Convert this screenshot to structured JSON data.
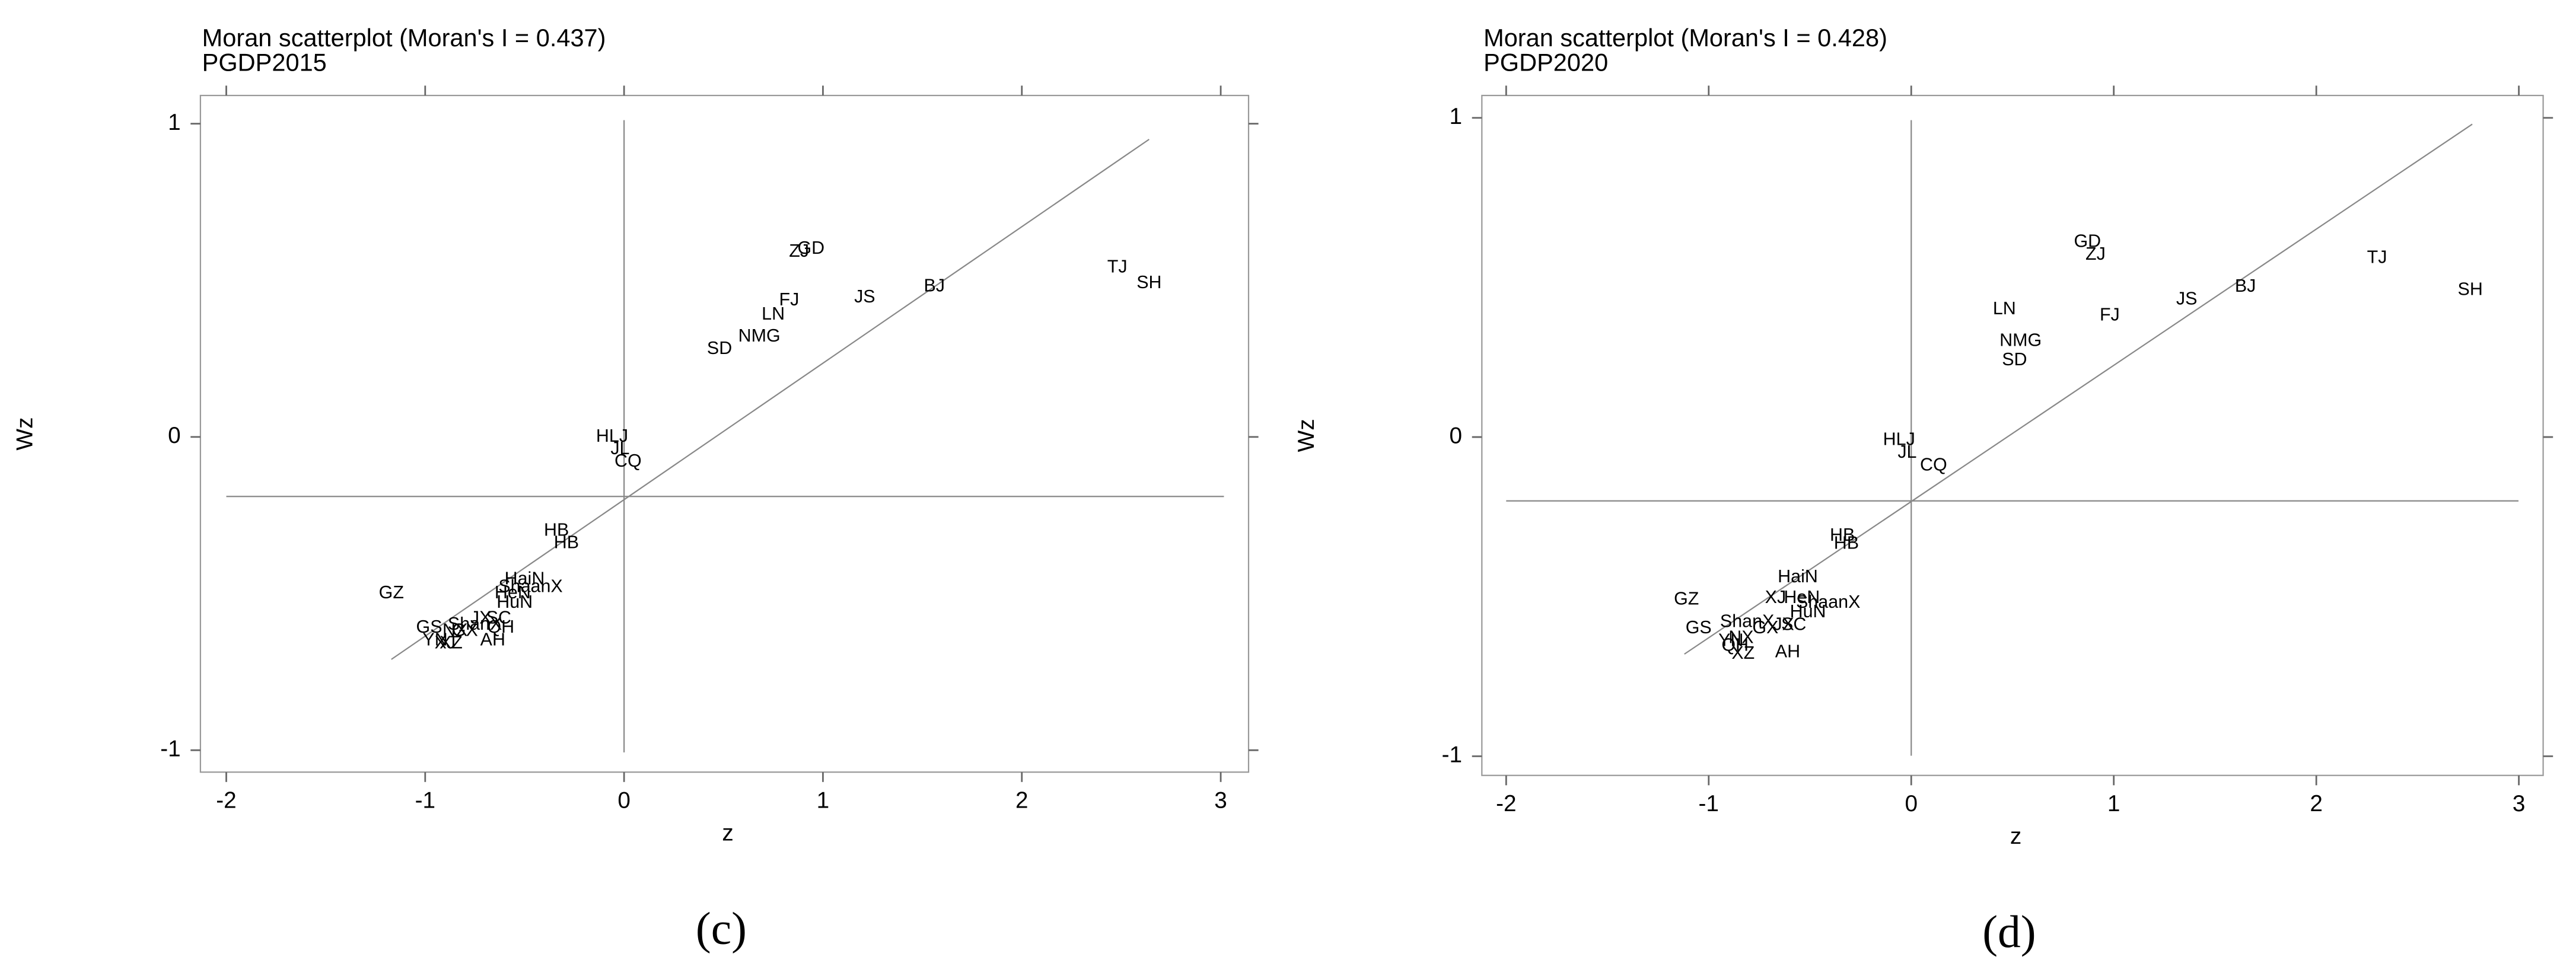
{
  "chart_data": [
    {
      "type": "scatter",
      "title": "Moran scatterplot (Moran's I = 0.437)",
      "subtitle": "PGDP2015",
      "caption": "(c)",
      "xlabel": "z",
      "ylabel": "Wz",
      "xlim": [
        -2.13,
        3.14
      ],
      "ylim": [
        -1.07,
        1.09
      ],
      "xticks": [
        -2,
        -1,
        0,
        1,
        2,
        3
      ],
      "yticks": [
        -1,
        0,
        1
      ],
      "hline": -0.19,
      "vline": 0,
      "fit_line": {
        "x": [
          -1.17,
          2.64
        ],
        "y": [
          -0.71,
          0.95
        ]
      },
      "labels": [
        "BJ",
        "TJ",
        "HB",
        "ShanX",
        "NMG",
        "LN",
        "JL",
        "HLJ",
        "SH",
        "JS",
        "ZJ",
        "AH",
        "FJ",
        "JX",
        "SD",
        "HeN",
        "HB",
        "HuN",
        "GD",
        "GX",
        "HaiN",
        "CQ",
        "SC",
        "GZ",
        "YN",
        "XZ",
        "ShaanX",
        "GS",
        "QH",
        "NX",
        "XJ"
      ],
      "x": [
        1.56,
        2.48,
        -0.34,
        -0.75,
        0.68,
        0.75,
        -0.02,
        -0.06,
        2.64,
        1.21,
        0.88,
        -0.66,
        0.83,
        -0.72,
        0.48,
        -0.56,
        -0.29,
        -0.55,
        0.94,
        -0.8,
        -0.5,
        0.02,
        -0.63,
        -1.17,
        -0.95,
        -0.87,
        -0.47,
        -0.98,
        -0.62,
        -0.85,
        -0.9
      ],
      "y": [
        0.48,
        0.54,
        -0.3,
        -0.6,
        0.32,
        0.39,
        -0.04,
        0.0,
        0.49,
        0.445,
        0.59,
        -0.65,
        0.435,
        -0.58,
        0.28,
        -0.5,
        -0.34,
        -0.53,
        0.6,
        -0.62,
        -0.455,
        -0.08,
        -0.58,
        -0.5,
        -0.65,
        -0.66,
        -0.48,
        -0.61,
        -0.61,
        -0.62,
        -0.66
      ]
    },
    {
      "type": "scatter",
      "title": "Moran scatterplot (Moran's I = 0.428)",
      "subtitle": "PGDP2020",
      "caption": "(d)",
      "xlabel": "z",
      "ylabel": "Wz",
      "xlim": [
        -2.12,
        3.12
      ],
      "ylim": [
        -1.06,
        1.07
      ],
      "xticks": [
        -2,
        -1,
        0,
        1,
        2,
        3
      ],
      "yticks": [
        -1,
        0,
        1
      ],
      "hline": -0.2,
      "vline": 0,
      "fit_line": {
        "x": [
          -1.12,
          2.77
        ],
        "y": [
          -0.68,
          0.98
        ]
      },
      "labels": [
        "BJ",
        "TJ",
        "HB",
        "ShanX",
        "NMG",
        "LN",
        "JL",
        "HLJ",
        "SH",
        "JS",
        "ZJ",
        "AH",
        "FJ",
        "JX",
        "SD",
        "HeN",
        "HB",
        "HuN",
        "GD",
        "GX",
        "HaiN",
        "CQ",
        "SC",
        "GZ",
        "YN",
        "XZ",
        "ShaanX",
        "GS",
        "QH",
        "NX",
        "XJ"
      ],
      "x": [
        1.65,
        2.3,
        -0.34,
        -0.81,
        0.54,
        0.46,
        -0.02,
        -0.06,
        2.76,
        1.36,
        0.91,
        -0.61,
        0.98,
        -0.63,
        0.51,
        -0.54,
        -0.32,
        -0.51,
        0.87,
        -0.72,
        -0.56,
        0.11,
        -0.58,
        -1.11,
        -0.89,
        -0.83,
        -0.41,
        -1.05,
        -0.87,
        -0.84,
        -0.67
      ],
      "y": [
        0.47,
        0.56,
        -0.31,
        -0.58,
        0.3,
        0.4,
        -0.05,
        -0.01,
        0.46,
        0.43,
        0.57,
        -0.675,
        0.38,
        -0.59,
        0.24,
        -0.505,
        -0.335,
        -0.55,
        0.61,
        -0.6,
        -0.44,
        -0.09,
        -0.59,
        -0.51,
        -0.64,
        -0.68,
        -0.52,
        -0.6,
        -0.655,
        -0.63,
        -0.505
      ]
    }
  ]
}
